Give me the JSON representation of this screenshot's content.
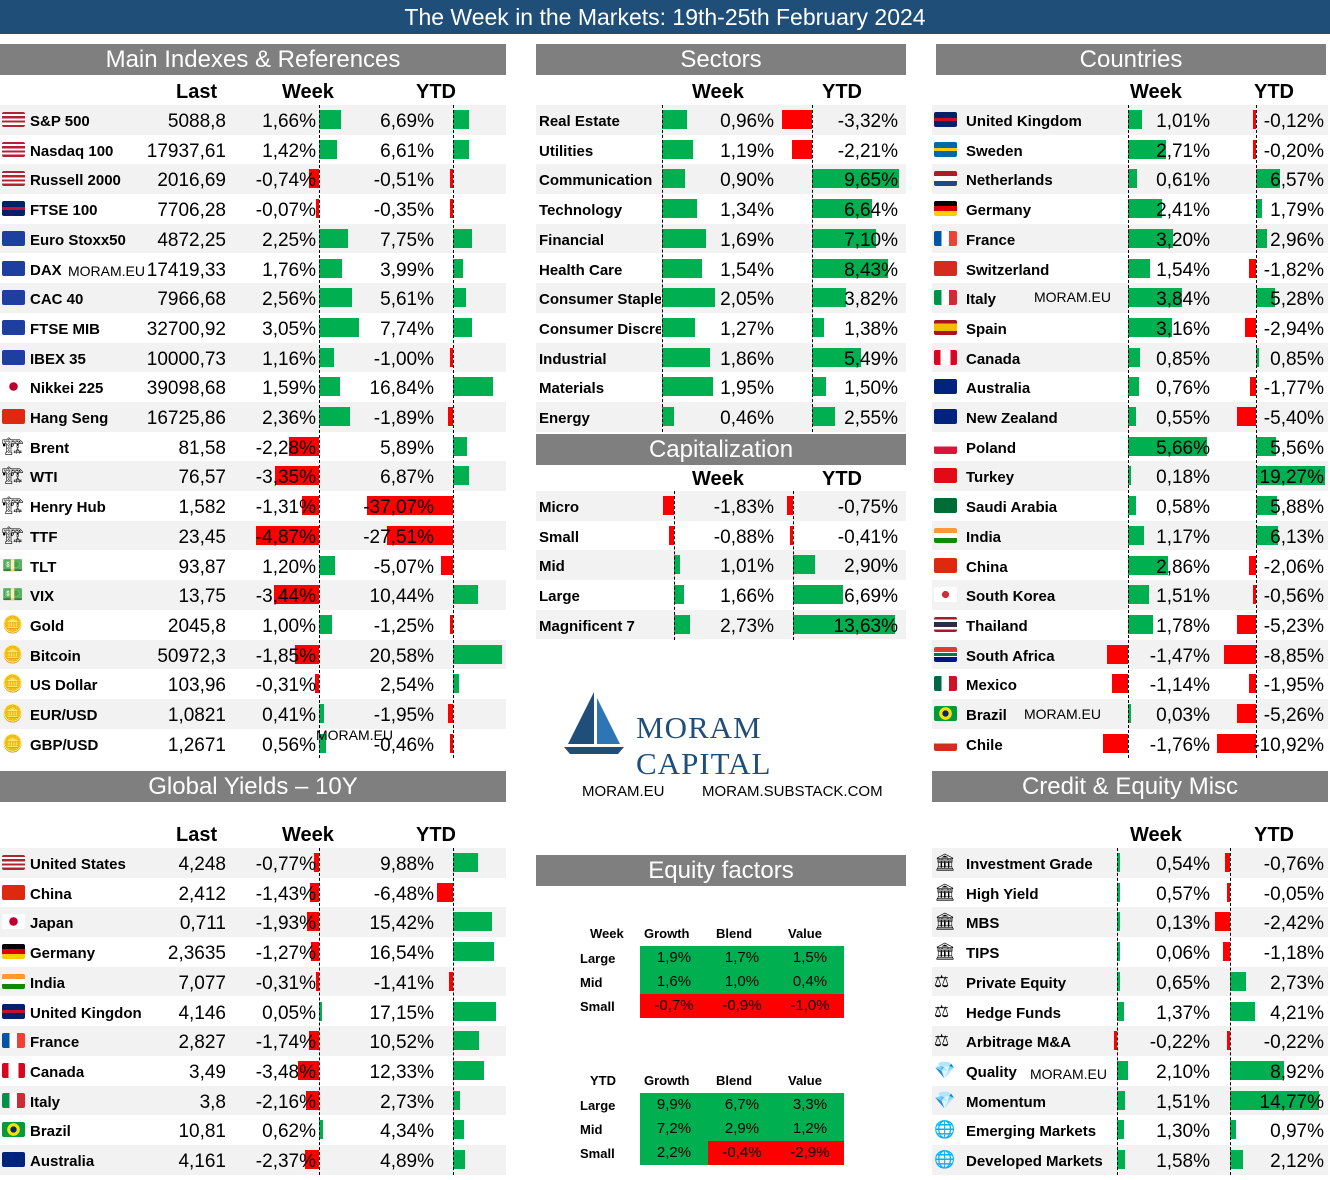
{
  "title": "The Week in the Markets: 19th-25th February 2024",
  "watermark": "MORAM.EU",
  "main": {
    "header": "Main Indexes & References",
    "cols": [
      "Last",
      "Week",
      "YTD"
    ],
    "rows": [
      {
        "name": "S&P 500",
        "last": "5088,8",
        "week": "1,66%",
        "ytd": "6,69%",
        "w": 1.66,
        "y": 6.69,
        "icon": "us-flag-icon"
      },
      {
        "name": "Nasdaq 100",
        "last": "17937,61",
        "week": "1,42%",
        "ytd": "6,61%",
        "w": 1.42,
        "y": 6.61,
        "icon": "us-flag-icon"
      },
      {
        "name": "Russell 2000",
        "last": "2016,69",
        "week": "-0,74%",
        "ytd": "-0,51%",
        "w": -0.74,
        "y": -0.51,
        "icon": "us-flag-icon"
      },
      {
        "name": "FTSE 100",
        "last": "7706,28",
        "week": "-0,07%",
        "ytd": "-0,35%",
        "w": -0.07,
        "y": -0.35,
        "icon": "uk-flag-icon"
      },
      {
        "name": "Euro Stoxx50",
        "last": "4872,25",
        "week": "2,25%",
        "ytd": "7,75%",
        "w": 2.25,
        "y": 7.75,
        "icon": "eu-flag-icon"
      },
      {
        "name": "DAX",
        "last": "17419,33",
        "week": "1,76%",
        "ytd": "3,99%",
        "w": 1.76,
        "y": 3.99,
        "icon": "eu-flag-icon"
      },
      {
        "name": "CAC 40",
        "last": "7966,68",
        "week": "2,56%",
        "ytd": "5,61%",
        "w": 2.56,
        "y": 5.61,
        "icon": "eu-flag-icon"
      },
      {
        "name": "FTSE MIB",
        "last": "32700,92",
        "week": "3,05%",
        "ytd": "7,74%",
        "w": 3.05,
        "y": 7.74,
        "icon": "eu-flag-icon"
      },
      {
        "name": "IBEX 35",
        "last": "10000,73",
        "week": "1,16%",
        "ytd": "-1,00%",
        "w": 1.16,
        "y": -1.0,
        "icon": "eu-flag-icon"
      },
      {
        "name": "Nikkei 225",
        "last": "39098,68",
        "week": "1,59%",
        "ytd": "16,84%",
        "w": 1.59,
        "y": 16.84,
        "icon": "japan-flag-icon"
      },
      {
        "name": "Hang Seng",
        "last": "16725,86",
        "week": "2,36%",
        "ytd": "-1,89%",
        "w": 2.36,
        "y": -1.89,
        "icon": "china-flag-icon"
      },
      {
        "name": "Brent",
        "last": "81,58",
        "week": "-2,28%",
        "ytd": "5,89%",
        "w": -2.28,
        "y": 5.89,
        "icon": "oil-rig-icon"
      },
      {
        "name": "WTI",
        "last": "76,57",
        "week": "-3,35%",
        "ytd": "6,87%",
        "w": -3.35,
        "y": 6.87,
        "icon": "oil-rig-icon"
      },
      {
        "name": "Henry Hub",
        "last": "1,582",
        "week": "-1,31%",
        "ytd": "-37,07%",
        "w": -1.31,
        "y": -37.07,
        "icon": "oil-rig-icon"
      },
      {
        "name": "TTF",
        "last": "23,45",
        "week": "-4,87%",
        "ytd": "-27,51%",
        "w": -4.87,
        "y": -27.51,
        "icon": "oil-rig-icon"
      },
      {
        "name": "TLT",
        "last": "93,87",
        "week": "1,20%",
        "ytd": "-5,07%",
        "w": 1.2,
        "y": -5.07,
        "icon": "money-icon"
      },
      {
        "name": "VIX",
        "last": "13,75",
        "week": "-3,44%",
        "ytd": "10,44%",
        "w": -3.44,
        "y": 10.44,
        "icon": "money-icon"
      },
      {
        "name": "Gold",
        "last": "2045,8",
        "week": "1,00%",
        "ytd": "-1,25%",
        "w": 1.0,
        "y": -1.25,
        "icon": "gold-icon"
      },
      {
        "name": "Bitcoin",
        "last": "50972,3",
        "week": "-1,85%",
        "ytd": "20,58%",
        "w": -1.85,
        "y": 20.58,
        "icon": "gold-icon"
      },
      {
        "name": "US Dollar",
        "last": "103,96",
        "week": "-0,31%",
        "ytd": "2,54%",
        "w": -0.31,
        "y": 2.54,
        "icon": "coins-icon"
      },
      {
        "name": "EUR/USD",
        "last": "1,0821",
        "week": "0,41%",
        "ytd": "-1,95%",
        "w": 0.41,
        "y": -1.95,
        "icon": "coins-icon"
      },
      {
        "name": "GBP/USD",
        "last": "1,2671",
        "week": "0,56%",
        "ytd": "-0,46%",
        "w": 0.56,
        "y": -0.46,
        "icon": "coins-icon"
      }
    ]
  },
  "sectors": {
    "header": "Sectors",
    "cols": [
      "Week",
      "YTD"
    ],
    "rows": [
      {
        "name": "Real Estate",
        "week": "0,96%",
        "ytd": "-3,32%",
        "w": 0.96,
        "y": -3.32
      },
      {
        "name": "Utilities",
        "week": "1,19%",
        "ytd": "-2,21%",
        "w": 1.19,
        "y": -2.21
      },
      {
        "name": "Communication",
        "week": "0,90%",
        "ytd": "9,65%",
        "w": 0.9,
        "y": 9.65
      },
      {
        "name": "Technology",
        "week": "1,34%",
        "ytd": "6,64%",
        "w": 1.34,
        "y": 6.64
      },
      {
        "name": "Financial",
        "week": "1,69%",
        "ytd": "7,10%",
        "w": 1.69,
        "y": 7.1
      },
      {
        "name": "Health Care",
        "week": "1,54%",
        "ytd": "8,43%",
        "w": 1.54,
        "y": 8.43
      },
      {
        "name": "Consumer Staple",
        "week": "2,05%",
        "ytd": "3,82%",
        "w": 2.05,
        "y": 3.82
      },
      {
        "name": "Consumer Discre",
        "week": "1,27%",
        "ytd": "1,38%",
        "w": 1.27,
        "y": 1.38
      },
      {
        "name": "Industrial",
        "week": "1,86%",
        "ytd": "5,49%",
        "w": 1.86,
        "y": 5.49
      },
      {
        "name": "Materials",
        "week": "1,95%",
        "ytd": "1,50%",
        "w": 1.95,
        "y": 1.5
      },
      {
        "name": "Energy",
        "week": "0,46%",
        "ytd": "2,55%",
        "w": 0.46,
        "y": 2.55
      }
    ]
  },
  "caps": {
    "header": "Capitalization",
    "cols": [
      "Week",
      "YTD"
    ],
    "rows": [
      {
        "name": "Micro",
        "week": "-1,83%",
        "ytd": "-0,75%",
        "w": -1.83,
        "y": -0.75
      },
      {
        "name": "Small",
        "week": "-0,88%",
        "ytd": "-0,41%",
        "w": -0.88,
        "y": -0.41
      },
      {
        "name": "Mid",
        "week": "1,01%",
        "ytd": "2,90%",
        "w": 1.01,
        "y": 2.9
      },
      {
        "name": "Large",
        "week": "1,66%",
        "ytd": "6,69%",
        "w": 1.66,
        "y": 6.69
      },
      {
        "name": "Magnificent 7",
        "week": "2,73%",
        "ytd": "13,63%",
        "w": 2.73,
        "y": 13.63
      }
    ]
  },
  "countries": {
    "header": "Countries",
    "cols": [
      "Week",
      "YTD"
    ],
    "rows": [
      {
        "name": "United Kingdom",
        "week": "1,01%",
        "ytd": "-0,12%",
        "w": 1.01,
        "y": -0.12,
        "icon": "uk-flag-icon"
      },
      {
        "name": "Sweden",
        "week": "2,71%",
        "ytd": "-0,20%",
        "w": 2.71,
        "y": -0.2,
        "icon": "sweden-flag-icon"
      },
      {
        "name": "Netherlands",
        "week": "0,61%",
        "ytd": "6,57%",
        "w": 0.61,
        "y": 6.57,
        "icon": "netherlands-flag-icon"
      },
      {
        "name": "Germany",
        "week": "2,41%",
        "ytd": "1,79%",
        "w": 2.41,
        "y": 1.79,
        "icon": "germany-flag-icon"
      },
      {
        "name": "France",
        "week": "3,20%",
        "ytd": "2,96%",
        "w": 3.2,
        "y": 2.96,
        "icon": "france-flag-icon"
      },
      {
        "name": "Switzerland",
        "week": "1,54%",
        "ytd": "-1,82%",
        "w": 1.54,
        "y": -1.82,
        "icon": "switzerland-flag-icon"
      },
      {
        "name": "Italy",
        "week": "3,84%",
        "ytd": "5,28%",
        "w": 3.84,
        "y": 5.28,
        "icon": "italy-flag-icon"
      },
      {
        "name": "Spain",
        "week": "3,16%",
        "ytd": "-2,94%",
        "w": 3.16,
        "y": -2.94,
        "icon": "spain-flag-icon"
      },
      {
        "name": "Canada",
        "week": "0,85%",
        "ytd": "0,85%",
        "w": 0.85,
        "y": 0.85,
        "icon": "canada-flag-icon"
      },
      {
        "name": "Australia",
        "week": "0,76%",
        "ytd": "-1,77%",
        "w": 0.76,
        "y": -1.77,
        "icon": "australia-flag-icon"
      },
      {
        "name": "New Zealand",
        "week": "0,55%",
        "ytd": "-5,40%",
        "w": 0.55,
        "y": -5.4,
        "icon": "new-zealand-flag-icon"
      },
      {
        "name": "Poland",
        "week": "5,66%",
        "ytd": "5,56%",
        "w": 5.66,
        "y": 5.56,
        "icon": "poland-flag-icon"
      },
      {
        "name": "Turkey",
        "week": "0,18%",
        "ytd": "19,27%",
        "w": 0.18,
        "y": 19.27,
        "icon": "turkey-flag-icon"
      },
      {
        "name": "Saudi Arabia",
        "week": "0,58%",
        "ytd": "5,88%",
        "w": 0.58,
        "y": 5.88,
        "icon": "saudi-flag-icon"
      },
      {
        "name": "India",
        "week": "1,17%",
        "ytd": "6,13%",
        "w": 1.17,
        "y": 6.13,
        "icon": "india-flag-icon"
      },
      {
        "name": "China",
        "week": "2,86%",
        "ytd": "-2,06%",
        "w": 2.86,
        "y": -2.06,
        "icon": "china-flag-icon"
      },
      {
        "name": "South Korea",
        "week": "1,51%",
        "ytd": "-0,56%",
        "w": 1.51,
        "y": -0.56,
        "icon": "korea-flag-icon"
      },
      {
        "name": "Thailand",
        "week": "1,78%",
        "ytd": "-5,23%",
        "w": 1.78,
        "y": -5.23,
        "icon": "thailand-flag-icon"
      },
      {
        "name": "South Africa",
        "week": "-1,47%",
        "ytd": "-8,85%",
        "w": -1.47,
        "y": -8.85,
        "icon": "south-africa-flag-icon"
      },
      {
        "name": "Mexico",
        "week": "-1,14%",
        "ytd": "-1,95%",
        "w": -1.14,
        "y": -1.95,
        "icon": "mexico-flag-icon"
      },
      {
        "name": "Brazil",
        "week": "0,03%",
        "ytd": "-5,26%",
        "w": 0.03,
        "y": -5.26,
        "icon": "brazil-flag-icon"
      },
      {
        "name": "Chile",
        "week": "-1,76%",
        "ytd": "-10,92%",
        "w": -1.76,
        "y": -10.92,
        "icon": "chile-flag-icon"
      }
    ]
  },
  "yields": {
    "header": "Global Yields – 10Y",
    "cols": [
      "Last",
      "Week",
      "YTD"
    ],
    "rows": [
      {
        "name": "United States",
        "last": "4,248",
        "week": "-0,77%",
        "ytd": "9,88%",
        "w": -0.77,
        "y": 9.88,
        "icon": "us-flag-icon"
      },
      {
        "name": "China",
        "last": "2,412",
        "week": "-1,43%",
        "ytd": "-6,48%",
        "w": -1.43,
        "y": -6.48,
        "icon": "china-flag-icon"
      },
      {
        "name": "Japan",
        "last": "0,711",
        "week": "-1,93%",
        "ytd": "15,42%",
        "w": -1.93,
        "y": 15.42,
        "icon": "japan-flag-icon"
      },
      {
        "name": "Germany",
        "last": "2,3635",
        "week": "-1,27%",
        "ytd": "16,54%",
        "w": -1.27,
        "y": 16.54,
        "icon": "germany-flag-icon"
      },
      {
        "name": "India",
        "last": "7,077",
        "week": "-0,31%",
        "ytd": "-1,41%",
        "w": -0.31,
        "y": -1.41,
        "icon": "india-flag-icon"
      },
      {
        "name": "United Kingdon",
        "last": "4,146",
        "week": "0,05%",
        "ytd": "17,15%",
        "w": 0.05,
        "y": 17.15,
        "icon": "uk-flag-icon"
      },
      {
        "name": "France",
        "last": "2,827",
        "week": "-1,74%",
        "ytd": "10,52%",
        "w": -1.74,
        "y": 10.52,
        "icon": "france-flag-icon"
      },
      {
        "name": "Canada",
        "last": "3,49",
        "week": "-3,48%",
        "ytd": "12,33%",
        "w": -3.48,
        "y": 12.33,
        "icon": "canada-flag-icon"
      },
      {
        "name": "Italy",
        "last": "3,8",
        "week": "-2,16%",
        "ytd": "2,73%",
        "w": -2.16,
        "y": 2.73,
        "icon": "italy-flag-icon"
      },
      {
        "name": "Brazil",
        "last": "10,81",
        "week": "0,62%",
        "ytd": "4,34%",
        "w": 0.62,
        "y": 4.34,
        "icon": "brazil-flag-icon"
      },
      {
        "name": "Australia",
        "last": "4,161",
        "week": "-2,37%",
        "ytd": "4,89%",
        "w": -2.37,
        "y": 4.89,
        "icon": "australia-flag-icon"
      }
    ]
  },
  "credit": {
    "header": "Credit & Equity Misc",
    "cols": [
      "Week",
      "YTD"
    ],
    "rows": [
      {
        "name": "Investment Grade",
        "week": "0,54%",
        "ytd": "-0,76%",
        "w": 0.54,
        "y": -0.76,
        "icon": "bank-icon"
      },
      {
        "name": "High Yield",
        "week": "0,57%",
        "ytd": "-0,05%",
        "w": 0.57,
        "y": -0.05,
        "icon": "bank-icon"
      },
      {
        "name": "MBS",
        "week": "0,13%",
        "ytd": "-2,42%",
        "w": 0.13,
        "y": -2.42,
        "icon": "bank-icon"
      },
      {
        "name": "TIPS",
        "week": "0,06%",
        "ytd": "-1,18%",
        "w": 0.06,
        "y": -1.18,
        "icon": "bank-icon"
      },
      {
        "name": "Private Equity",
        "week": "0,65%",
        "ytd": "2,73%",
        "w": 0.65,
        "y": 2.73,
        "icon": "scale-icon"
      },
      {
        "name": "Hedge Funds",
        "week": "1,37%",
        "ytd": "4,21%",
        "w": 1.37,
        "y": 4.21,
        "icon": "scale-icon"
      },
      {
        "name": "Arbitrage M&A",
        "week": "-0,22%",
        "ytd": "-0,22%",
        "w": -0.22,
        "y": -0.22,
        "icon": "scale-icon"
      },
      {
        "name": "Quality",
        "week": "2,10%",
        "ytd": "8,92%",
        "w": 2.1,
        "y": 8.92,
        "icon": "diamond-icon"
      },
      {
        "name": "Momentum",
        "week": "1,51%",
        "ytd": "14,77%",
        "w": 1.51,
        "y": 14.77,
        "icon": "diamond-icon"
      },
      {
        "name": "Emerging Markets",
        "week": "1,30%",
        "ytd": "0,97%",
        "w": 1.3,
        "y": 0.97,
        "icon": "globe-icon"
      },
      {
        "name": "Developed Markets",
        "week": "1,58%",
        "ytd": "2,12%",
        "w": 1.58,
        "y": 2.12,
        "icon": "globe-icon"
      }
    ]
  },
  "factors": {
    "header": "Equity factors",
    "tables": [
      {
        "corner": "Week",
        "cols": [
          "Growth",
          "Blend",
          "Value"
        ],
        "rows": [
          {
            "name": "Large",
            "vals": [
              "1,9%",
              "1,7%",
              "1,5%"
            ],
            "n": [
              1.9,
              1.7,
              1.5
            ]
          },
          {
            "name": "Mid",
            "vals": [
              "1,6%",
              "1,0%",
              "0,4%"
            ],
            "n": [
              1.6,
              1.0,
              0.4
            ]
          },
          {
            "name": "Small",
            "vals": [
              "-0,7%",
              "-0,9%",
              "-1,0%"
            ],
            "n": [
              -0.7,
              -0.9,
              -1.0
            ]
          }
        ]
      },
      {
        "corner": "YTD",
        "cols": [
          "Growth",
          "Blend",
          "Value"
        ],
        "rows": [
          {
            "name": "Large",
            "vals": [
              "9,9%",
              "6,7%",
              "3,3%"
            ],
            "n": [
              9.9,
              6.7,
              3.3
            ]
          },
          {
            "name": "Mid",
            "vals": [
              "7,2%",
              "2,9%",
              "1,2%"
            ],
            "n": [
              7.2,
              2.9,
              1.2
            ]
          },
          {
            "name": "Small",
            "vals": [
              "2,2%",
              "-0,4%",
              "-2,9%"
            ],
            "n": [
              2.2,
              -0.4,
              -2.9
            ]
          }
        ]
      }
    ]
  },
  "logo": {
    "name": "MORAM CAPITAL",
    "link1": "MORAM.EU",
    "link2": "MORAM.SUBSTACK.COM"
  },
  "colors": {
    "pos": "#00b050",
    "neg": "#ff0000",
    "header": "#7f7f7f",
    "title": "#1f4e79"
  }
}
